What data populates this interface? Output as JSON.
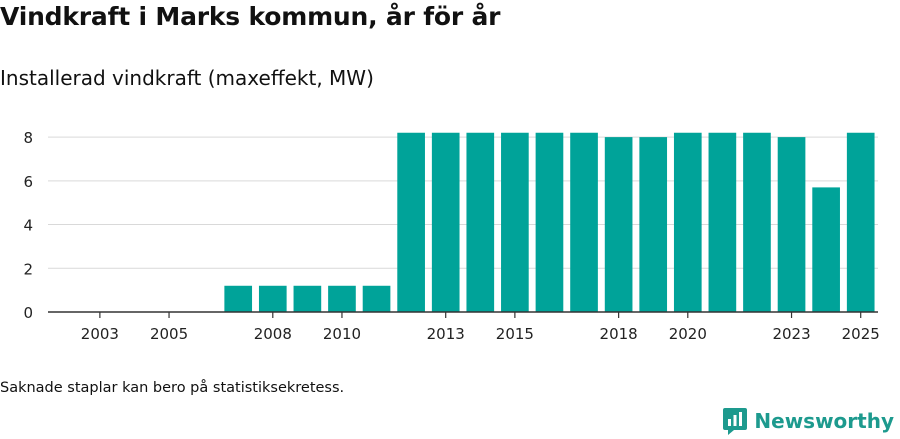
{
  "header": {
    "title": "Vindkraft i Marks kommun, år för år",
    "subtitle": "Installerad vindkraft (maxeffekt, MW)"
  },
  "footer": {
    "note": "Saknade staplar kan bero på statistiksekretess.",
    "brand": "Newsworthy"
  },
  "colors": {
    "bar": "#00a399",
    "grid": "#d9d9d9",
    "axis": "#333333",
    "brand": "#1d9a8e"
  },
  "chart_data": {
    "type": "bar",
    "title": "Vindkraft i Marks kommun, år för år",
    "subtitle": "Installerad vindkraft (maxeffekt, MW)",
    "xlabel": "",
    "ylabel": "",
    "ylim": [
      0,
      8.6
    ],
    "yticks": [
      0,
      2,
      4,
      6,
      8
    ],
    "xtick_labels": [
      "2003",
      "2005",
      "2008",
      "2010",
      "2013",
      "2015",
      "2018",
      "2020",
      "2023",
      "2025"
    ],
    "categories": [
      "2002",
      "2003",
      "2004",
      "2005",
      "2006",
      "2007",
      "2008",
      "2009",
      "2010",
      "2011",
      "2012",
      "2013",
      "2014",
      "2015",
      "2016",
      "2017",
      "2018",
      "2019",
      "2020",
      "2021",
      "2022",
      "2023",
      "2024",
      "2025"
    ],
    "values": [
      null,
      null,
      null,
      null,
      null,
      1.2,
      1.2,
      1.2,
      1.2,
      1.2,
      8.2,
      8.2,
      8.2,
      8.2,
      8.2,
      8.2,
      8.0,
      8.0,
      8.2,
      8.2,
      8.2,
      8.0,
      5.7,
      8.2
    ],
    "grid": true
  }
}
